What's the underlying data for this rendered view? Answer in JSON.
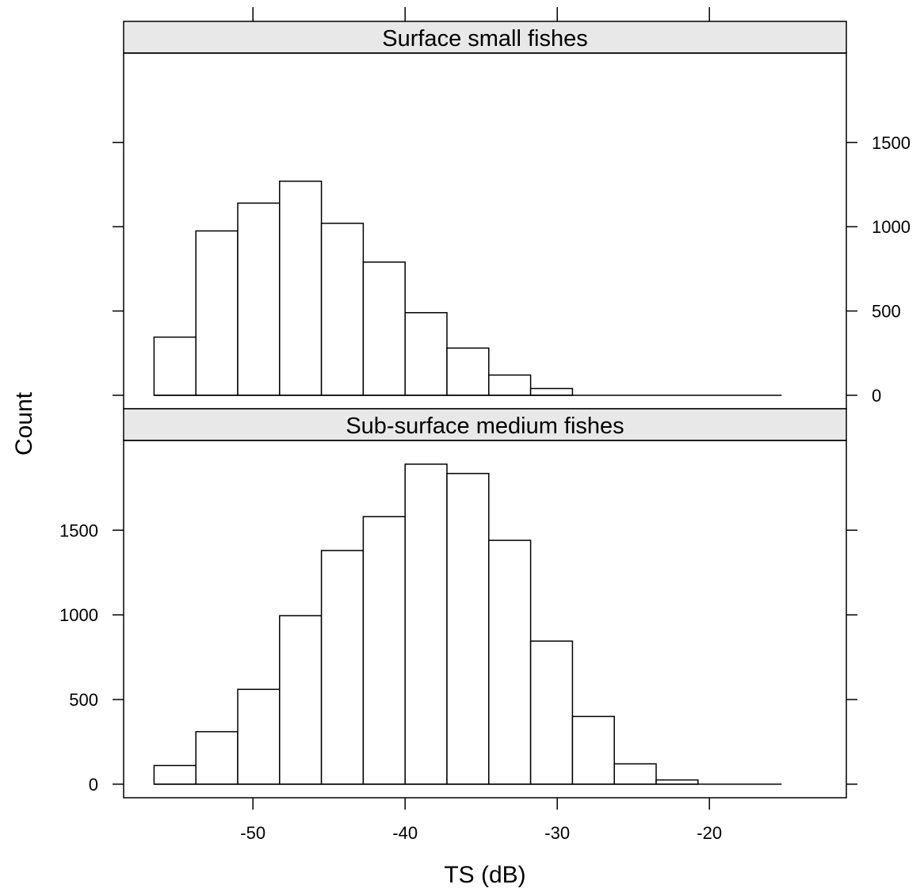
{
  "chart_data": {
    "type": "bar",
    "layout": "two stacked histogram panels sharing the x axis",
    "xlabel": "TS (dB)",
    "ylabel": "Count",
    "xlim": [
      -58.5,
      -11
    ],
    "x_ticks": [
      -50,
      -40,
      -30,
      -20
    ],
    "bin_edges": [
      -56.5,
      -53.75,
      -51,
      -48.25,
      -45.5,
      -42.75,
      -40,
      -37.25,
      -34.5,
      -31.75,
      -29,
      -26.25,
      -23.5,
      -20.75,
      -18,
      -15.25
    ],
    "panels": [
      {
        "title": "Surface small fishes",
        "y_ticks": [
          0,
          500,
          1000,
          1500
        ],
        "ylim": [
          -80,
          2030
        ],
        "values": [
          345,
          975,
          1140,
          1270,
          1020,
          790,
          490,
          280,
          120,
          40,
          0,
          0,
          0,
          0,
          0
        ]
      },
      {
        "title": "Sub-surface medium fishes",
        "y_ticks": [
          0,
          500,
          1000,
          1500
        ],
        "ylim": [
          -80,
          2030
        ],
        "values": [
          110,
          310,
          560,
          995,
          1380,
          1580,
          1890,
          1835,
          1440,
          845,
          400,
          120,
          25,
          0,
          0
        ]
      }
    ]
  }
}
